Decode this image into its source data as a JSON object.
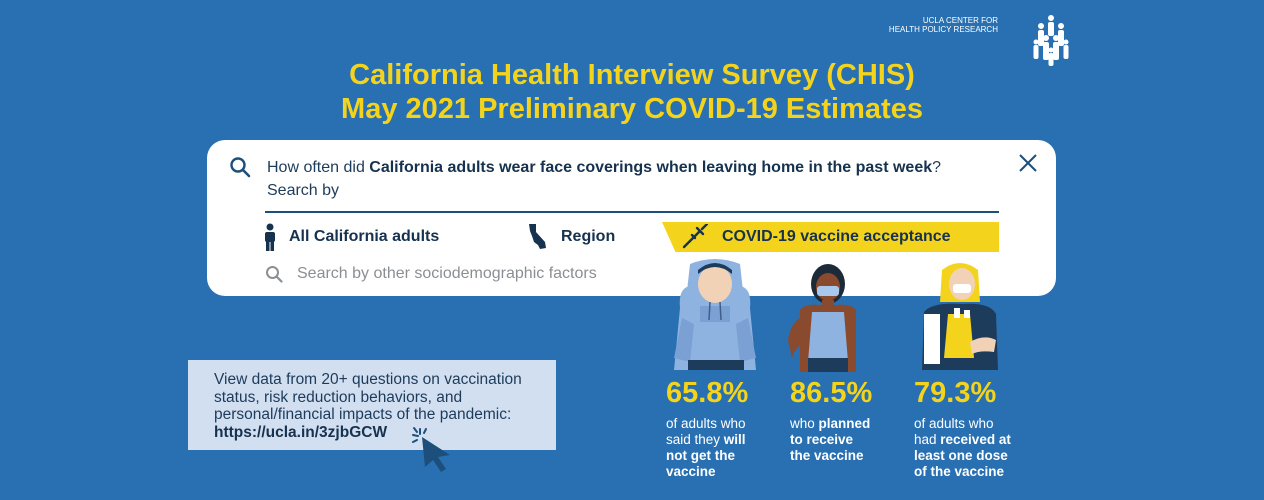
{
  "logo": {
    "line1": "UCLA CENTER FOR",
    "line2": "HEALTH POLICY RESEARCH",
    "icon": "people-group-icon"
  },
  "title": {
    "line1": "California Health Interview Survey (CHIS)",
    "line2": "May 2021 Preliminary COVID-19 Estimates"
  },
  "search_card": {
    "question_pre": "How often did ",
    "question_bold": "California adults wear face coverings when leaving home in the past week",
    "question_post": "?",
    "search_by": "Search by",
    "options": [
      {
        "label": "All California adults",
        "icon": "person-icon"
      },
      {
        "label": "Region",
        "icon": "california-map-icon"
      },
      {
        "label": "COVID-19 vaccine acceptance",
        "icon": "syringe-icon",
        "selected": true
      }
    ],
    "placeholder": "Search by other sociodemographic factors"
  },
  "info_box": {
    "line1": "View data from 20+ questions on vaccination",
    "line2": "status, risk reduction behaviors, and",
    "line3": "personal/financial impacts of the pandemic:",
    "link": "https://ucla.in/3zjbGCW"
  },
  "stats": [
    {
      "pct": "65.8%",
      "d1": "of adults who",
      "d2": "said they ",
      "d2b": "will",
      "d3b": "not get the",
      "d4b": "vaccine"
    },
    {
      "pct": "86.5%",
      "d1": "who ",
      "d1b": "planned",
      "d2b": "to receive",
      "d3b": "the vaccine"
    },
    {
      "pct": "79.3%",
      "d1": "of adults who",
      "d2": "had ",
      "d2b": "received at",
      "d3b": "least one dose",
      "d4b": "of the vaccine"
    }
  ],
  "colors": {
    "background": "#2870b2",
    "accent": "#f4d31c",
    "card": "#ffffff",
    "info_box": "#d2dff0"
  }
}
